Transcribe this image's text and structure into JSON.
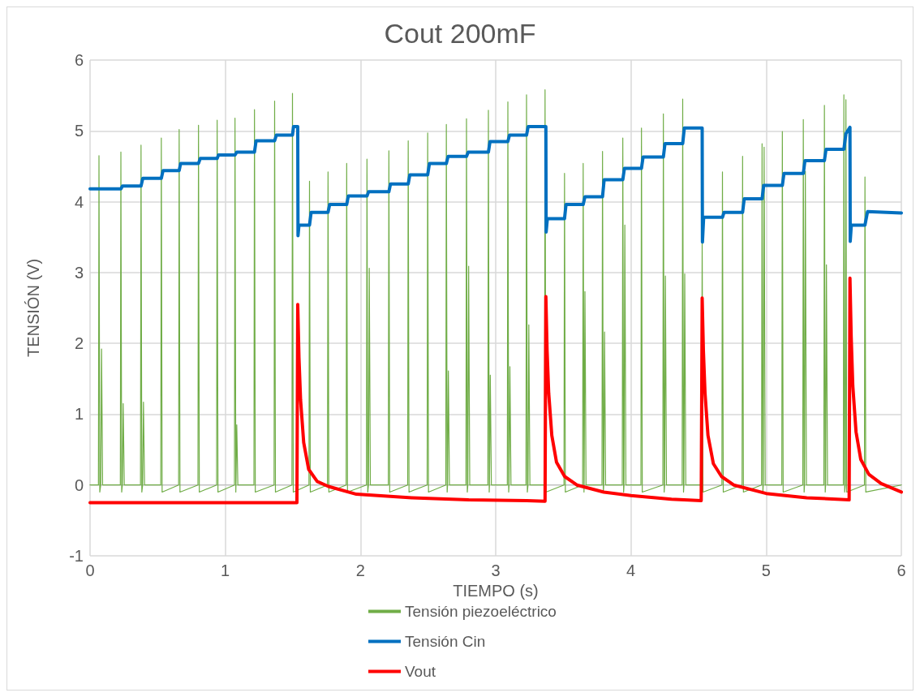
{
  "chart_data": {
    "type": "line",
    "title": "Cout 200mF",
    "xlabel": "TIEMPO (s)",
    "ylabel": "TENSIÓN (V)",
    "xlim": [
      0,
      6
    ],
    "xticks": [
      0,
      1,
      2,
      3,
      4,
      5,
      6
    ],
    "ylim": [
      -1,
      6
    ],
    "yticks": [
      -1,
      0,
      1,
      2,
      3,
      4,
      5,
      6
    ],
    "grid": true,
    "legend": "bottom",
    "marker": "none",
    "line_style": "solid",
    "series": [
      {
        "name": "Tensión piezoeléctrico",
        "color": "#70ad47",
        "x": [
          0,
          0.062,
          0.066,
          0.072,
          0.079,
          0.085,
          0.093,
          0.224,
          0.228,
          0.234,
          0.239,
          0.245,
          0.253,
          0.373,
          0.377,
          0.383,
          0.389,
          0.395,
          0.403,
          0.523,
          0.527,
          0.533,
          0.655,
          0.659,
          0.665,
          0.798,
          0.802,
          0.808,
          0.936,
          0.94,
          0.946,
          1.068,
          1.072,
          1.078,
          1.079,
          1.085,
          1.093,
          1.212,
          1.216,
          1.222,
          1.361,
          1.365,
          1.371,
          1.493,
          1.497,
          1.503,
          1.619,
          1.623,
          1.629,
          1.756,
          1.76,
          1.766,
          1.894,
          1.898,
          1.904,
          2.044,
          2.048,
          2.054,
          2.059,
          2.065,
          2.073,
          2.206,
          2.21,
          2.216,
          2.349,
          2.353,
          2.359,
          2.493,
          2.497,
          2.503,
          2.631,
          2.635,
          2.641,
          2.644,
          2.65,
          2.658,
          2.78,
          2.784,
          2.79,
          2.794,
          2.8,
          2.808,
          2.942,
          2.946,
          2.952,
          2.954,
          2.96,
          2.968,
          3.086,
          3.09,
          3.096,
          3.099,
          3.105,
          3.113,
          3.224,
          3.228,
          3.234,
          3.239,
          3.245,
          3.253,
          3.361,
          3.365,
          3.371,
          3.505,
          3.509,
          3.515,
          3.643,
          3.647,
          3.653,
          3.654,
          3.66,
          3.668,
          3.786,
          3.79,
          3.796,
          3.799,
          3.805,
          3.813,
          3.936,
          3.94,
          3.946,
          3.949,
          3.955,
          3.963,
          4.074,
          4.078,
          4.084,
          4.236,
          4.24,
          4.246,
          4.249,
          4.255,
          4.263,
          4.379,
          4.383,
          4.389,
          4.392,
          4.398,
          4.406,
          4.523,
          4.527,
          4.533,
          4.673,
          4.677,
          4.683,
          4.822,
          4.826,
          4.832,
          4.966,
          4.97,
          4.976,
          4.979,
          4.985,
          4.993,
          5.116,
          5.12,
          5.126,
          5.271,
          5.275,
          5.281,
          5.284,
          5.29,
          5.298,
          5.427,
          5.431,
          5.437,
          5.44,
          5.446,
          5.454,
          5.571,
          5.575,
          5.581,
          5.586,
          5.59,
          5.596,
          5.727,
          5.731,
          5.737,
          6.0
        ],
        "values": [
          0,
          0,
          4.65,
          -0.1,
          0,
          1.92,
          0,
          0,
          4.7,
          -0.1,
          0,
          1.15,
          0,
          0,
          4.8,
          -0.1,
          0,
          1.17,
          0,
          0,
          4.9,
          -0.1,
          0,
          5.02,
          -0.1,
          0,
          5.08,
          -0.1,
          0,
          5.15,
          -0.1,
          0,
          5.18,
          -0.1,
          0,
          0.85,
          0,
          0,
          5.3,
          -0.1,
          0,
          5.42,
          -0.1,
          0,
          5.53,
          -0.1,
          0,
          4.29,
          -0.1,
          0,
          4.42,
          -0.1,
          0,
          4.54,
          -0.1,
          0,
          4.6,
          -0.1,
          0,
          3.06,
          0,
          0,
          4.72,
          -0.1,
          0,
          4.86,
          -0.1,
          0,
          4.97,
          -0.1,
          0,
          5.09,
          -0.1,
          0,
          1.61,
          0,
          0,
          5.17,
          -0.1,
          0,
          3.09,
          0,
          0,
          5.29,
          -0.1,
          0,
          1.55,
          0,
          0,
          5.41,
          -0.1,
          0,
          1.67,
          0,
          0,
          5.51,
          -0.1,
          0,
          2.26,
          0,
          0,
          5.58,
          -0.1,
          0,
          4.4,
          -0.1,
          0,
          4.54,
          -0.1,
          0,
          2.73,
          0,
          0,
          4.71,
          -0.1,
          0,
          2.16,
          0,
          0,
          4.9,
          -0.1,
          0,
          3.67,
          0,
          0,
          5.04,
          -0.1,
          0,
          5.24,
          -0.1,
          0,
          2.95,
          0,
          0,
          5.45,
          -0.1,
          0,
          2.98,
          0,
          0,
          3.45,
          -0.1,
          0,
          4.42,
          -0.1,
          0,
          4.64,
          -0.1,
          0,
          4.82,
          -0.1,
          0,
          4.77,
          0,
          0,
          4.99,
          -0.1,
          0,
          5.16,
          -0.1,
          0,
          4.43,
          0,
          0,
          5.36,
          -0.1,
          0,
          3.11,
          0,
          0,
          5.51,
          -0.1,
          0,
          5.44,
          -0.1,
          0,
          4.35,
          -0.1,
          0
        ]
      },
      {
        "name": "Tensión Cin",
        "color": "#0070c0",
        "x": [
          0,
          0.228,
          0.24,
          0.377,
          0.39,
          0.527,
          0.54,
          0.659,
          0.67,
          0.802,
          0.815,
          0.94,
          0.95,
          1.072,
          1.085,
          1.216,
          1.228,
          1.365,
          1.378,
          1.497,
          1.505,
          1.536,
          1.538,
          1.545,
          1.623,
          1.635,
          1.76,
          1.772,
          1.898,
          1.91,
          2.048,
          2.06,
          2.21,
          2.222,
          2.353,
          2.365,
          2.497,
          2.51,
          2.635,
          2.648,
          2.784,
          2.797,
          2.946,
          2.958,
          3.09,
          3.102,
          3.228,
          3.24,
          3.371,
          3.373,
          3.382,
          3.509,
          3.52,
          3.647,
          3.66,
          3.79,
          3.802,
          3.94,
          3.952,
          4.078,
          4.09,
          4.24,
          4.252,
          4.383,
          4.395,
          4.527,
          4.529,
          4.538,
          4.677,
          4.689,
          4.826,
          4.838,
          4.97,
          4.982,
          5.12,
          5.132,
          5.275,
          5.287,
          5.431,
          5.443,
          5.575,
          5.59,
          5.62,
          5.622,
          5.63,
          5.731,
          5.75,
          6.0
        ],
        "values": [
          4.18,
          4.18,
          4.22,
          4.22,
          4.33,
          4.33,
          4.44,
          4.44,
          4.54,
          4.54,
          4.61,
          4.61,
          4.66,
          4.66,
          4.7,
          4.7,
          4.86,
          4.86,
          4.94,
          4.94,
          5.06,
          5.06,
          3.52,
          3.67,
          3.67,
          3.85,
          3.85,
          3.96,
          3.96,
          4.08,
          4.08,
          4.14,
          4.14,
          4.25,
          4.25,
          4.38,
          4.38,
          4.54,
          4.54,
          4.64,
          4.64,
          4.7,
          4.7,
          4.85,
          4.85,
          4.94,
          4.94,
          5.06,
          5.06,
          3.57,
          3.76,
          3.76,
          3.96,
          3.96,
          4.07,
          4.07,
          4.31,
          4.31,
          4.47,
          4.47,
          4.63,
          4.63,
          4.82,
          4.82,
          5.04,
          5.04,
          3.43,
          3.78,
          3.78,
          3.85,
          3.85,
          4.04,
          4.04,
          4.23,
          4.23,
          4.4,
          4.4,
          4.58,
          4.58,
          4.74,
          4.74,
          4.96,
          5.05,
          3.44,
          3.67,
          3.67,
          3.86,
          3.84
        ]
      },
      {
        "name": "Vout",
        "color": "#ff0000",
        "x": [
          0,
          1.53,
          1.536,
          1.545,
          1.557,
          1.58,
          1.617,
          1.68,
          1.763,
          1.97,
          2.38,
          2.8,
          3.23,
          3.365,
          3.371,
          3.38,
          3.392,
          3.415,
          3.45,
          3.51,
          3.6,
          3.8,
          4.0,
          4.3,
          4.52,
          4.527,
          4.536,
          4.548,
          4.57,
          4.61,
          4.67,
          4.76,
          5.0,
          5.3,
          5.614,
          5.62,
          5.629,
          5.641,
          5.665,
          5.7,
          5.76,
          5.85,
          6.0
        ],
        "values": [
          -0.25,
          -0.25,
          2.55,
          1.8,
          1.2,
          0.6,
          0.22,
          0.05,
          -0.02,
          -0.13,
          -0.18,
          -0.21,
          -0.22,
          -0.23,
          2.66,
          1.9,
          1.3,
          0.7,
          0.32,
          0.12,
          0.0,
          -0.1,
          -0.15,
          -0.2,
          -0.22,
          2.64,
          1.9,
          1.3,
          0.7,
          0.3,
          0.12,
          0.0,
          -0.12,
          -0.18,
          -0.21,
          2.92,
          2.1,
          1.4,
          0.75,
          0.36,
          0.15,
          0.02,
          -0.1
        ]
      }
    ]
  }
}
